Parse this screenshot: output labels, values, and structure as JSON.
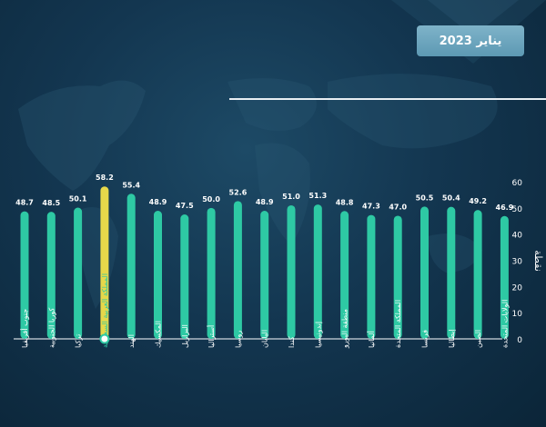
{
  "header": {
    "date_label": "يناير 2023"
  },
  "colors": {
    "bar": "#2ec9a4",
    "highlight_bar": "#e6d84a",
    "text": "#ffffff",
    "axis": "#cfd8de",
    "highlight_label": "#2ec9a4"
  },
  "chart_data": {
    "type": "bar",
    "orientation": "vertical",
    "ylabel": "نقطة",
    "ylim": [
      0,
      60
    ],
    "yticks": [
      0,
      10,
      20,
      30,
      40,
      50,
      60
    ],
    "grid": false,
    "highlight_index": 3,
    "categories": [
      "جنوب أفريقيا",
      "كوريا الجنوبية",
      "تركيا",
      "المملكة العربية السعودية",
      "الهند",
      "المكسيك",
      "البرازيل",
      "أستراليا",
      "روسيا",
      "اليابان",
      "كندا",
      "إندونيسيا",
      "منطقة اليورو",
      "ألمانيا",
      "المملكة المتحدة",
      "فرنسا",
      "إيطاليا",
      "الصين",
      "الولايات المتحدة"
    ],
    "values": [
      48.7,
      48.5,
      50.1,
      58.2,
      55.4,
      48.9,
      47.5,
      50.0,
      52.6,
      48.9,
      51.0,
      51.3,
      48.8,
      47.3,
      47.0,
      50.5,
      50.4,
      49.2,
      46.9
    ],
    "value_labels": [
      "48.7",
      "48.5",
      "50.1",
      "58.2",
      "55.4",
      "48.9",
      "47.5",
      "50.0",
      "52.6",
      "48.9",
      "51.0",
      "51.3",
      "48.8",
      "47.3",
      "47.0",
      "50.5",
      "50.4",
      "49.2",
      "46.9"
    ]
  }
}
